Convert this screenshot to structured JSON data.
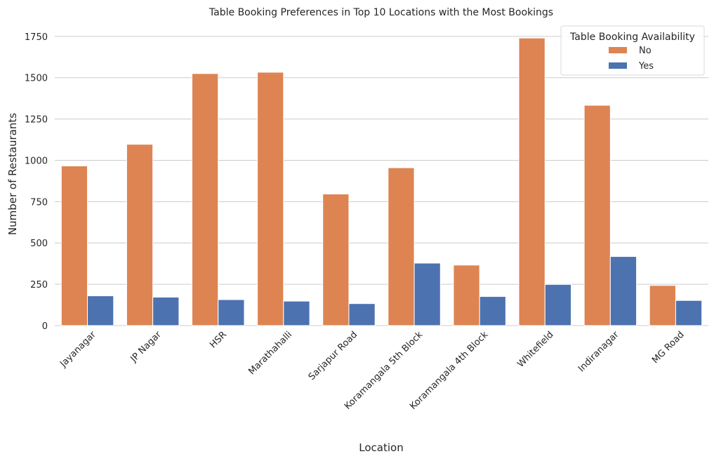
{
  "chart_data": {
    "type": "bar",
    "title": "Table Booking Preferences in Top 10 Locations with the Most Bookings",
    "xlabel": "Location",
    "ylabel": "Number of Restaurants",
    "categories": [
      "Jayanagar",
      "JP Nagar",
      "HSR",
      "Marathahalli",
      "Sarjapur Road",
      "Koramangala 5th Block",
      "Koramangala 4th Block",
      "Whitefield",
      "Indiranagar",
      "MG Road"
    ],
    "series": [
      {
        "name": "No",
        "color": "#dd8452",
        "values": [
          966,
          1097,
          1525,
          1533,
          796,
          955,
          366,
          1740,
          1333,
          243
        ]
      },
      {
        "name": "Yes",
        "color": "#4c72b0",
        "values": [
          180,
          172,
          157,
          148,
          133,
          378,
          176,
          249,
          418,
          152
        ]
      }
    ],
    "ylim": [
      0,
      1830
    ],
    "yticks": [
      0,
      250,
      500,
      750,
      1000,
      1250,
      1500,
      1750
    ],
    "grid": true,
    "legend": {
      "title": "Table Booking Availability",
      "placement": "top-right"
    },
    "tick_rotation": 45
  }
}
